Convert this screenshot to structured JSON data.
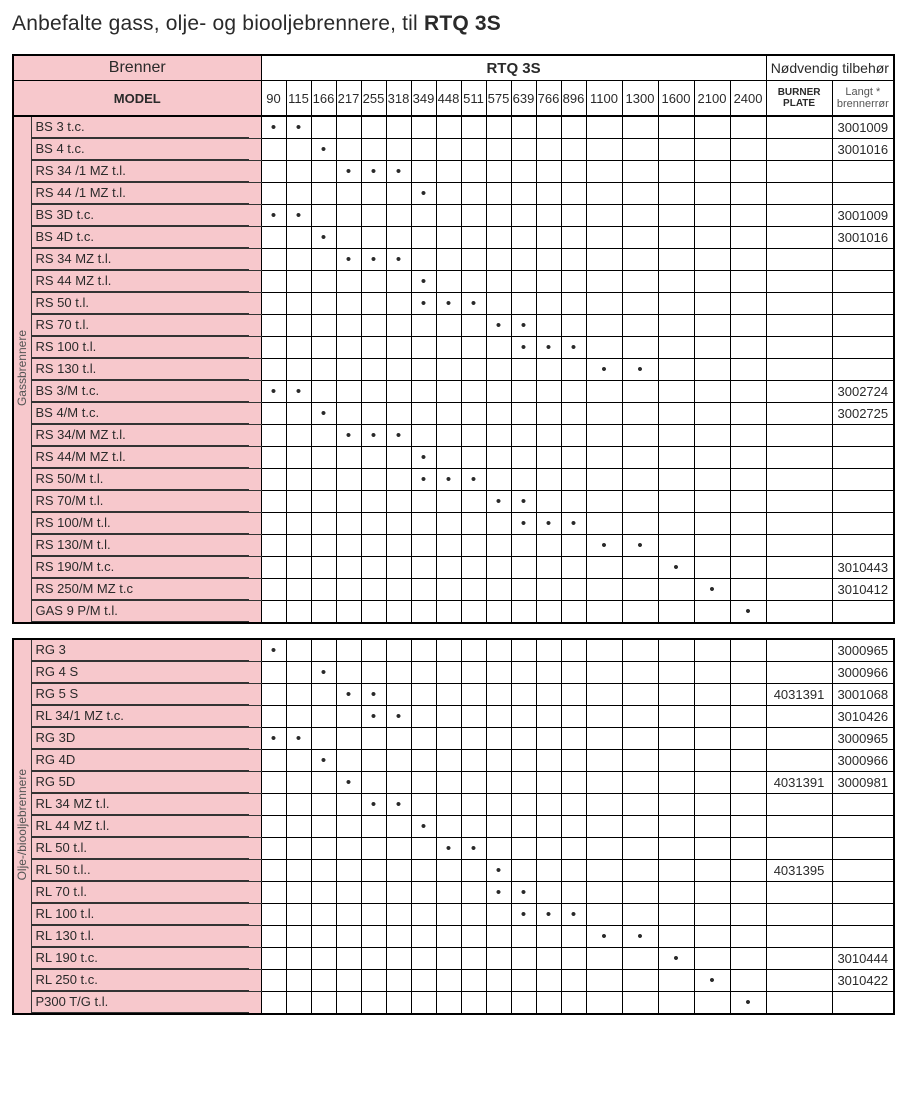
{
  "title_prefix": "Anbefalte gass, olje- og biooljebrennere, til ",
  "title_strong": "RTQ 3S",
  "header": {
    "brenner": "Brenner",
    "rtq": "RTQ 3S",
    "tilbehor": "Nødvendig tilbehør",
    "model": "MODEL",
    "burner_plate_l1": "BURNER",
    "burner_plate_l2": "PLATE",
    "langt_l1": "Langt  *",
    "langt_l2": "brennerrør"
  },
  "columns": [
    "90",
    "115",
    "166",
    "217",
    "255",
    "318",
    "349",
    "448",
    "511",
    "575",
    "639",
    "766",
    "896",
    "1100",
    "1300",
    "1600",
    "2100",
    "2400"
  ],
  "col_widths": {
    "vlabel": 18,
    "model": 230,
    "num_small": 25,
    "num_wide": 36,
    "burner_plate": 66,
    "langt": 62
  },
  "groups": [
    {
      "label": "Gassbrennere",
      "rows": [
        {
          "model": "BS 3 t.c.",
          "dots": [
            0,
            1
          ],
          "plate": "",
          "langt": "3001009"
        },
        {
          "model": "BS 4 t.c.",
          "dots": [
            2
          ],
          "plate": "",
          "langt": "3001016"
        },
        {
          "model": "RS 34 /1 MZ t.l.",
          "dots": [
            3,
            4,
            5
          ],
          "plate": "",
          "langt": ""
        },
        {
          "model": "RS 44 /1 MZ t.l.",
          "dots": [
            6
          ],
          "plate": "",
          "langt": ""
        },
        {
          "model": "BS 3D t.c.",
          "dots": [
            0,
            1
          ],
          "plate": "",
          "langt": "3001009"
        },
        {
          "model": "BS 4D t.c.",
          "dots": [
            2
          ],
          "plate": "",
          "langt": "3001016"
        },
        {
          "model": "RS 34 MZ t.l.",
          "dots": [
            3,
            4,
            5
          ],
          "plate": "",
          "langt": ""
        },
        {
          "model": "RS 44 MZ t.l.",
          "dots": [
            6
          ],
          "plate": "",
          "langt": ""
        },
        {
          "model": "RS 50 t.l.",
          "dots": [
            6,
            7,
            8
          ],
          "plate": "",
          "langt": ""
        },
        {
          "model": "RS 70 t.l.",
          "dots": [
            9,
            10
          ],
          "plate": "",
          "langt": ""
        },
        {
          "model": "RS 100 t.l.",
          "dots": [
            10,
            11,
            12
          ],
          "plate": "",
          "langt": ""
        },
        {
          "model": "RS 130 t.l.",
          "dots": [
            13,
            14
          ],
          "plate": "",
          "langt": ""
        },
        {
          "model": "BS 3/M t.c.",
          "dots": [
            0,
            1
          ],
          "plate": "",
          "langt": "3002724"
        },
        {
          "model": "BS 4/M t.c.",
          "dots": [
            2
          ],
          "plate": "",
          "langt": "3002725"
        },
        {
          "model": "RS 34/M MZ t.l.",
          "dots": [
            3,
            4,
            5
          ],
          "plate": "",
          "langt": ""
        },
        {
          "model": "RS 44/M MZ t.l.",
          "dots": [
            6
          ],
          "plate": "",
          "langt": ""
        },
        {
          "model": "RS 50/M t.l.",
          "dots": [
            6,
            7,
            8
          ],
          "plate": "",
          "langt": ""
        },
        {
          "model": "RS 70/M t.l.",
          "dots": [
            9,
            10
          ],
          "plate": "",
          "langt": ""
        },
        {
          "model": "RS 100/M t.l.",
          "dots": [
            10,
            11,
            12
          ],
          "plate": "",
          "langt": ""
        },
        {
          "model": "RS 130/M t.l.",
          "dots": [
            13,
            14
          ],
          "plate": "",
          "langt": ""
        },
        {
          "model": "RS 190/M t.c.",
          "dots": [
            15
          ],
          "plate": "",
          "langt": "3010443"
        },
        {
          "model": "RS 250/M MZ t.c",
          "dots": [
            16
          ],
          "plate": "",
          "langt": "3010412"
        },
        {
          "model": "GAS 9 P/M t.l.",
          "dots": [
            17
          ],
          "plate": "",
          "langt": ""
        }
      ]
    },
    {
      "label": "Olje-/biooljebrennere",
      "rows": [
        {
          "model": "RG 3",
          "dots": [
            0
          ],
          "plate": "",
          "langt": "3000965"
        },
        {
          "model": "RG 4 S",
          "dots": [
            2
          ],
          "plate": "",
          "langt": "3000966"
        },
        {
          "model": "RG 5 S",
          "dots": [
            3,
            4
          ],
          "plate": "4031391",
          "langt": "3001068"
        },
        {
          "model": "RL 34/1 MZ t.c.",
          "dots": [
            4,
            5
          ],
          "plate": "",
          "langt": "3010426"
        },
        {
          "model": "RG 3D",
          "dots": [
            0,
            1
          ],
          "plate": "",
          "langt": "3000965"
        },
        {
          "model": "RG 4D",
          "dots": [
            2
          ],
          "plate": "",
          "langt": "3000966"
        },
        {
          "model": "RG 5D",
          "dots": [
            3
          ],
          "plate": "4031391",
          "langt": "3000981"
        },
        {
          "model": "RL 34 MZ t.l.",
          "dots": [
            4,
            5
          ],
          "plate": "",
          "langt": ""
        },
        {
          "model": "RL 44 MZ t.l.",
          "dots": [
            6
          ],
          "plate": "",
          "langt": ""
        },
        {
          "model": "RL 50 t.l.",
          "dots": [
            7,
            8
          ],
          "plate": "",
          "langt": ""
        },
        {
          "model": "RL 50 t.l..",
          "dots": [
            9
          ],
          "plate": "4031395",
          "langt": ""
        },
        {
          "model": "RL 70 t.l.",
          "dots": [
            9,
            10
          ],
          "plate": "",
          "langt": ""
        },
        {
          "model": "RL 100 t.l.",
          "dots": [
            10,
            11,
            12
          ],
          "plate": "",
          "langt": ""
        },
        {
          "model": "RL 130 t.l.",
          "dots": [
            13,
            14
          ],
          "plate": "",
          "langt": ""
        },
        {
          "model": "RL 190 t.c.",
          "dots": [
            15
          ],
          "plate": "",
          "langt": "3010444"
        },
        {
          "model": "RL 250 t.c.",
          "dots": [
            16
          ],
          "plate": "",
          "langt": "3010422"
        },
        {
          "model": "P300 T/G t.l.",
          "dots": [
            17
          ],
          "plate": "",
          "langt": ""
        }
      ]
    }
  ]
}
